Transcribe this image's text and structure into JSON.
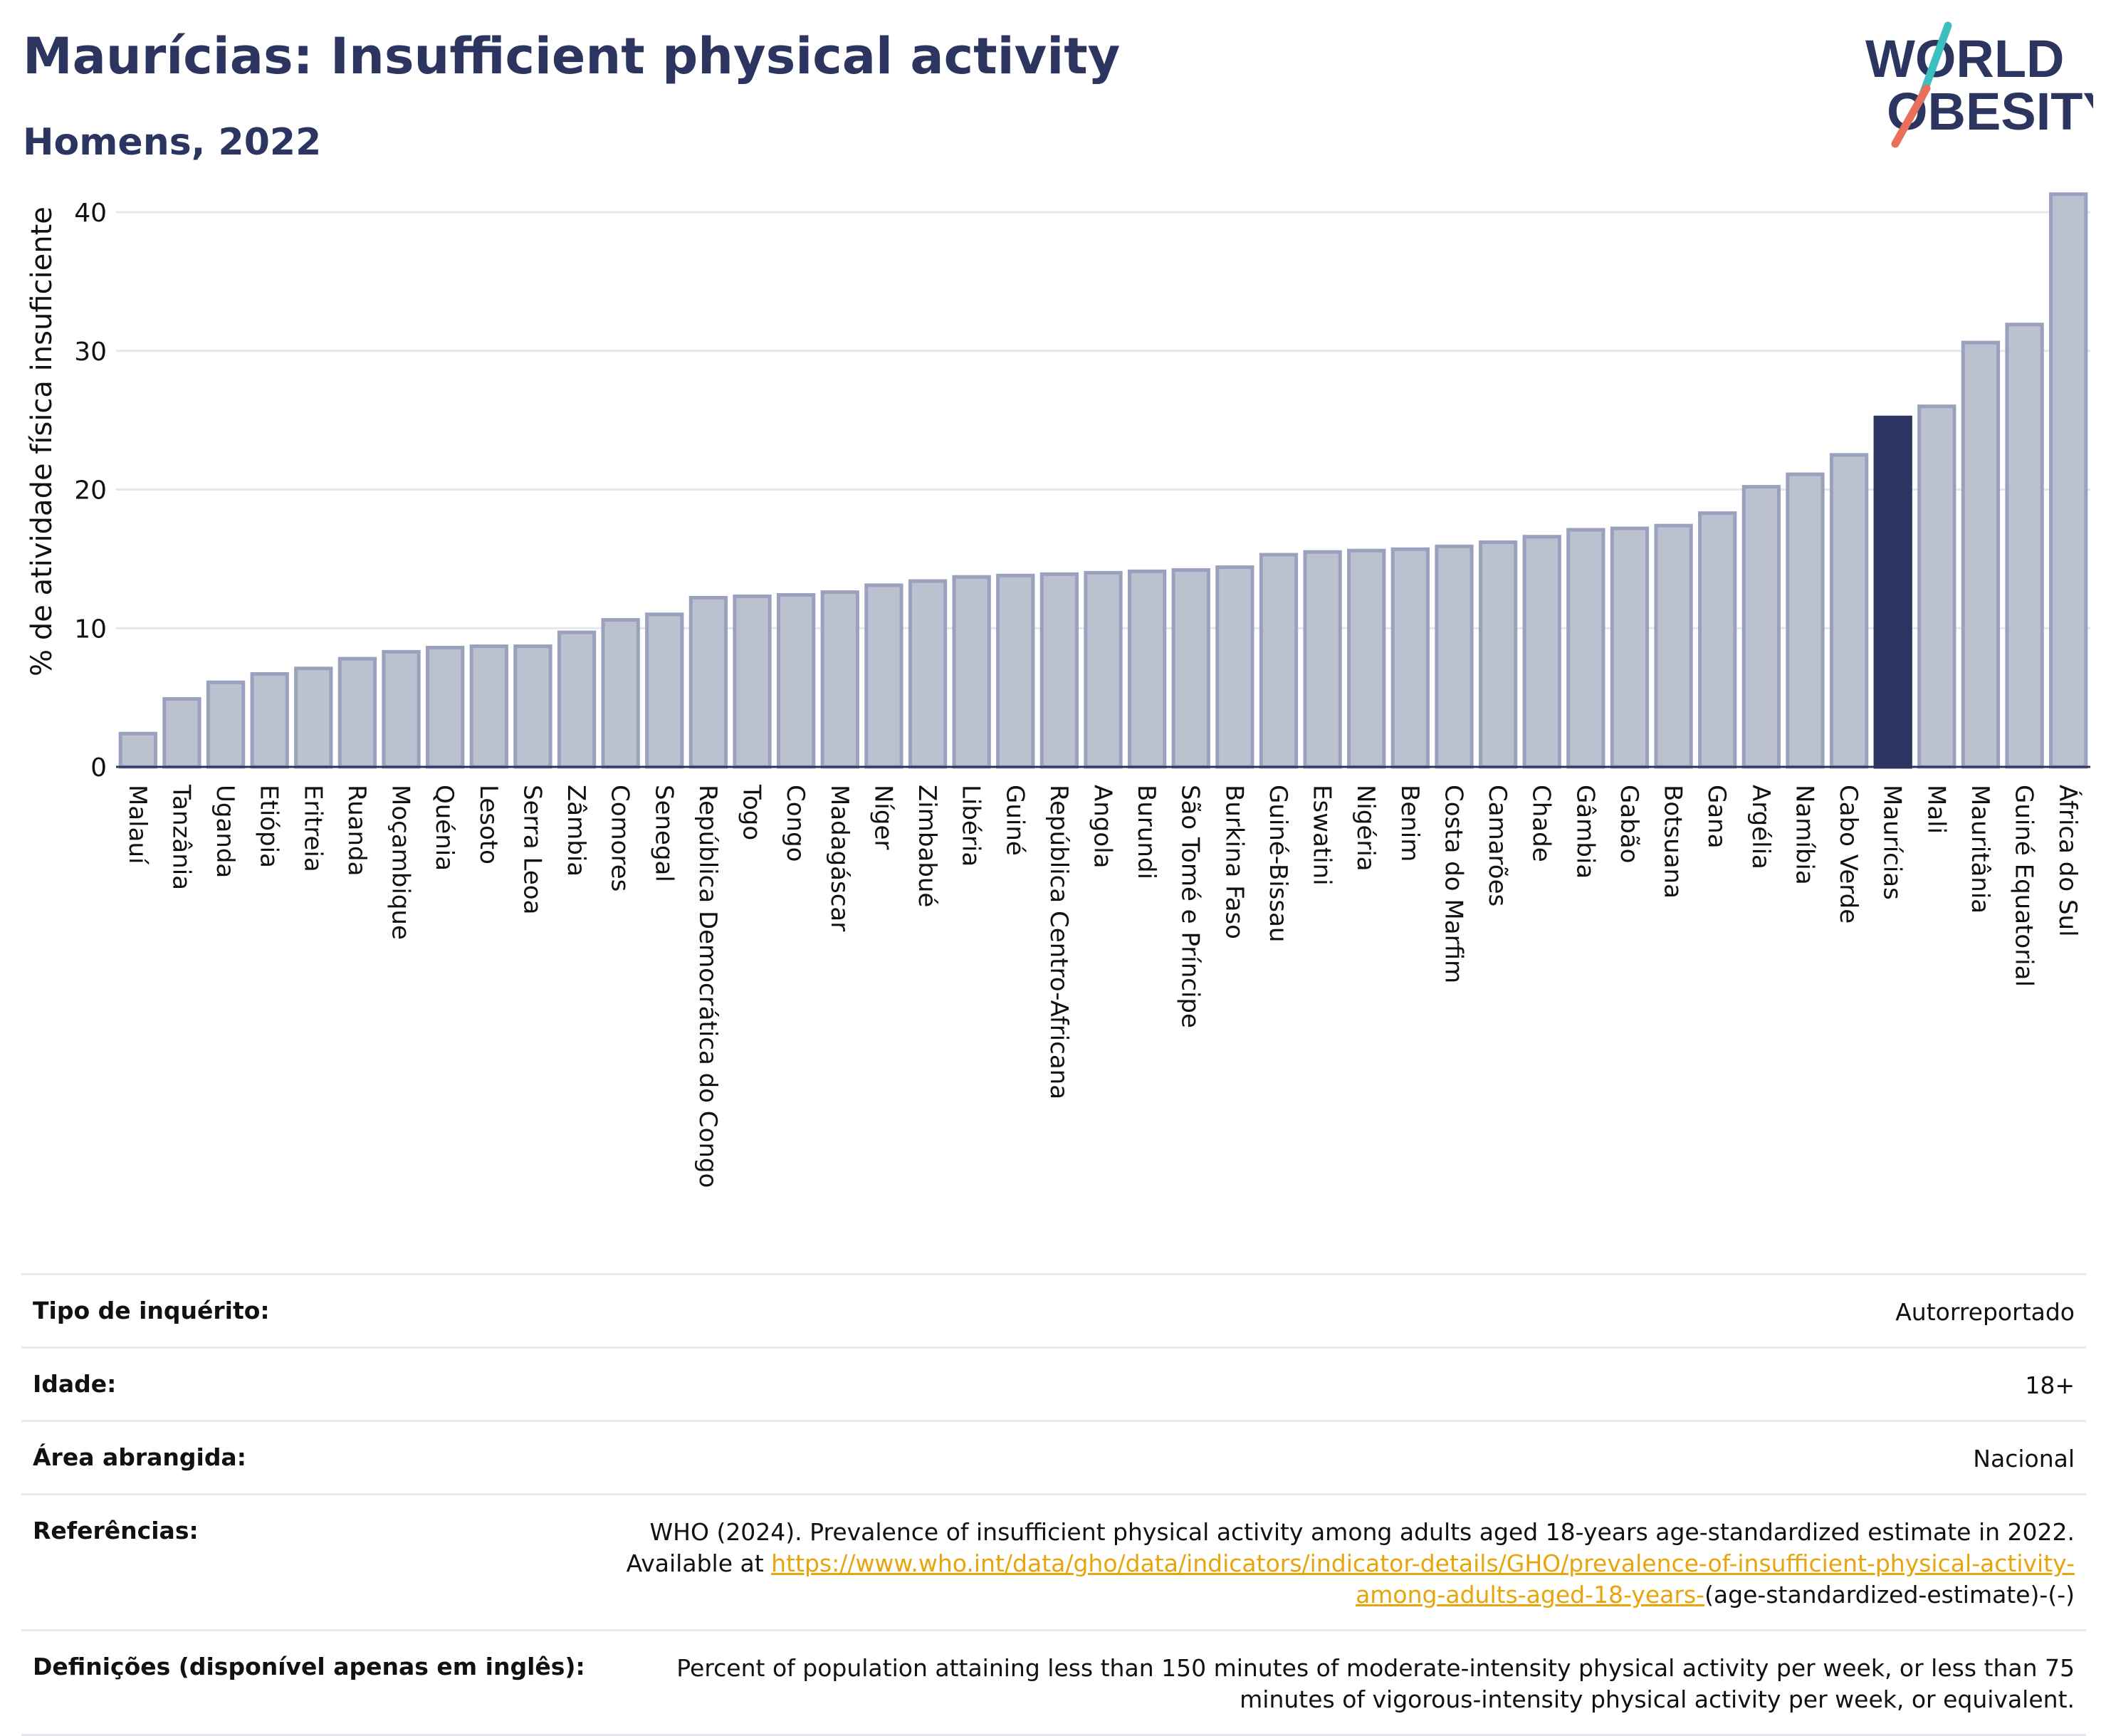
{
  "header": {
    "title": "Maurícias: Insufficient physical activity",
    "subtitle": "Homens, 2022",
    "logo_line1": "WORLD",
    "logo_line2": "OBESITY"
  },
  "colors": {
    "bar_fill": "#bcc1d0",
    "bar_stroke": "#9aa1bc",
    "highlight": "#2b355f",
    "grid": "#e5e7ec",
    "logo_slash_red": "#e8705a",
    "logo_slash_teal": "#3bbfc0"
  },
  "chart_data": {
    "type": "bar",
    "title": "",
    "xlabel": "",
    "ylabel": "% de atividade física insuficiente",
    "ylim": [
      0,
      42
    ],
    "yticks": [
      0,
      10,
      20,
      30,
      40
    ],
    "highlight": "Maurícias",
    "categories": [
      "Malauí",
      "Tanzânia",
      "Uganda",
      "Etiópia",
      "Eritreia",
      "Ruanda",
      "Moçambique",
      "Quénia",
      "Lesoto",
      "Serra Leoa",
      "Zâmbia",
      "Comores",
      "Senegal",
      "República Democrática do Congo",
      "Togo",
      "Congo",
      "Madagáscar",
      "Níger",
      "Zimbabué",
      "Libéria",
      "Guiné",
      "República Centro-Africana",
      "Angola",
      "Burundi",
      "São Tomé e Príncipe",
      "Burkina Faso",
      "Guiné-Bissau",
      "Eswatini",
      "Nigéria",
      "Benim",
      "Costa do Marfim",
      "Camarões",
      "Chade",
      "Gâmbia",
      "Gabão",
      "Botsuana",
      "Gana",
      "Argélia",
      "Namíbia",
      "Cabo Verde",
      "Maurícias",
      "Mali",
      "Mauritânia",
      "Guiné Equatorial",
      "África do Sul"
    ],
    "values": [
      2.4,
      4.9,
      6.1,
      6.7,
      7.1,
      7.8,
      8.3,
      8.6,
      8.7,
      8.7,
      9.7,
      10.6,
      11.0,
      12.2,
      12.3,
      12.4,
      12.6,
      13.1,
      13.4,
      13.7,
      13.8,
      13.9,
      14.0,
      14.1,
      14.2,
      14.4,
      15.3,
      15.5,
      15.6,
      15.7,
      15.9,
      16.2,
      16.6,
      17.1,
      17.2,
      17.4,
      18.3,
      20.2,
      21.1,
      22.5,
      25.2,
      26.0,
      30.6,
      31.9,
      41.3
    ]
  },
  "info": {
    "survey_label": "Tipo de inquérito:",
    "survey_value": "Autorreportado",
    "age_label": "Idade:",
    "age_value": "18+",
    "area_label": "Área abrangida:",
    "area_value": "Nacional",
    "ref_label": "Referências:",
    "ref_text": "WHO (2024). Prevalence of insufficient physical activity among adults aged 18-years age-standardized estimate in 2022. Available at",
    "ref_link": "https://www.who.int/data/gho/data/indicators/indicator-details/GHO/prevalence-of-insufficient-physical-activity-among-adults-aged-18-years-",
    "ref_suffix": "(age-standardized-estimate)-(-)",
    "def_label": "Definições (disponível apenas em inglês):",
    "def_text": "Percent of population attaining less than 150 minutes of moderate-intensity physical activity per week, or less than 75 minutes of vigorous-intensity physical activity per week, or equivalent."
  }
}
